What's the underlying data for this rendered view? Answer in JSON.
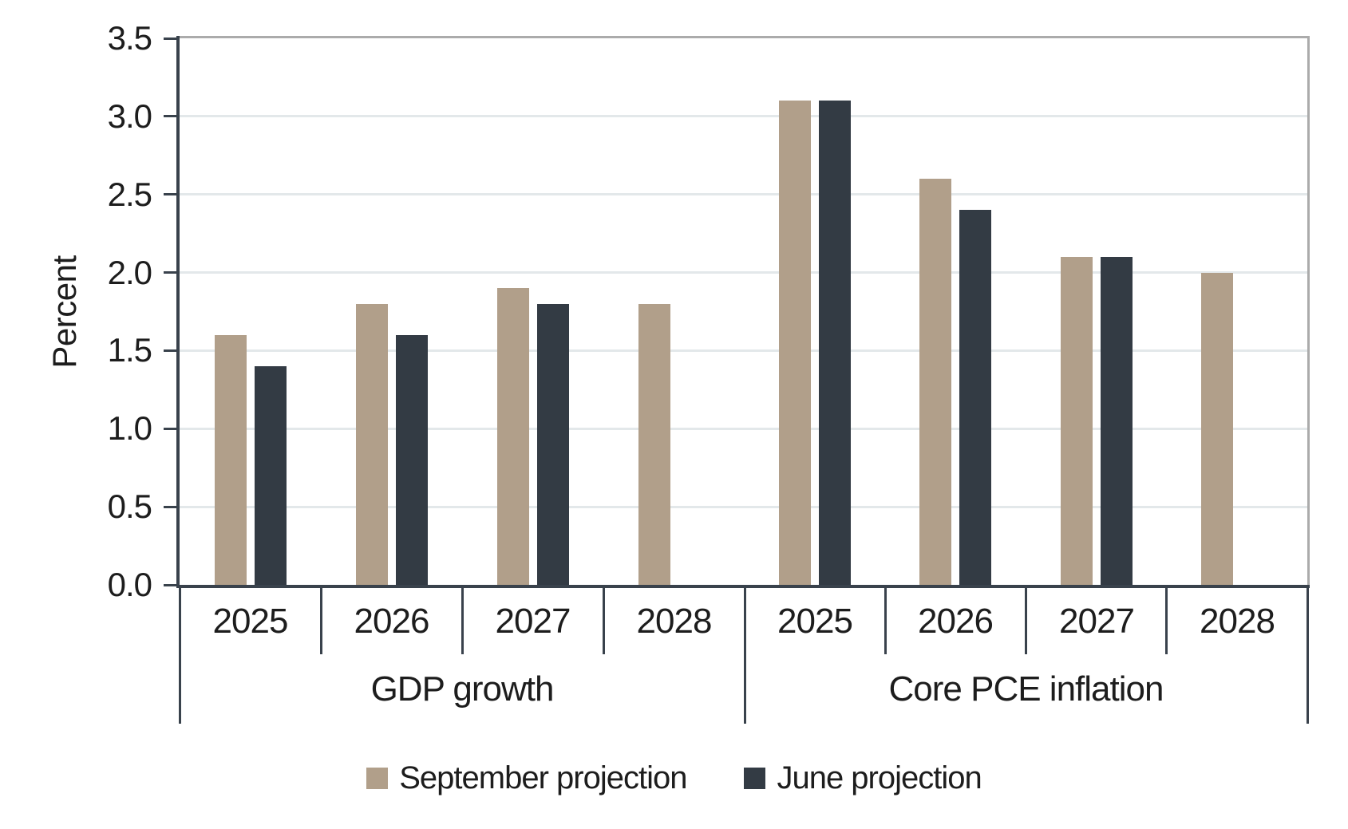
{
  "chart_data": {
    "type": "bar",
    "title": "",
    "ylabel": "Percent",
    "ylim": [
      0,
      3.5
    ],
    "ytick_step": 0.5,
    "yticks": [
      "0.0",
      "0.5",
      "1.0",
      "1.5",
      "2.0",
      "2.5",
      "3.0",
      "3.5"
    ],
    "grid": true,
    "legend_position": "bottom",
    "series": [
      {
        "name": "September projection",
        "color": "#B19F8A"
      },
      {
        "name": "June projection",
        "color": "#333B44"
      }
    ],
    "groups": [
      {
        "label": "GDP growth",
        "categories": [
          "2025",
          "2026",
          "2027",
          "2028"
        ],
        "values": [
          [
            1.6,
            1.4
          ],
          [
            1.8,
            1.6
          ],
          [
            1.9,
            1.8
          ],
          [
            1.8,
            null
          ]
        ]
      },
      {
        "label": "Core PCE inflation",
        "categories": [
          "2025",
          "2026",
          "2027",
          "2028"
        ],
        "values": [
          [
            3.1,
            3.1
          ],
          [
            2.6,
            2.4
          ],
          [
            2.1,
            2.1
          ],
          [
            2.0,
            null
          ]
        ]
      }
    ]
  },
  "colors": {
    "september": "#B19F8A",
    "june": "#333B44",
    "axis": "#39424C",
    "gridline": "#E3E8EA",
    "plot_border": "#ABABAB",
    "text": "#1D1D1D",
    "background": "#FFFFFF"
  }
}
